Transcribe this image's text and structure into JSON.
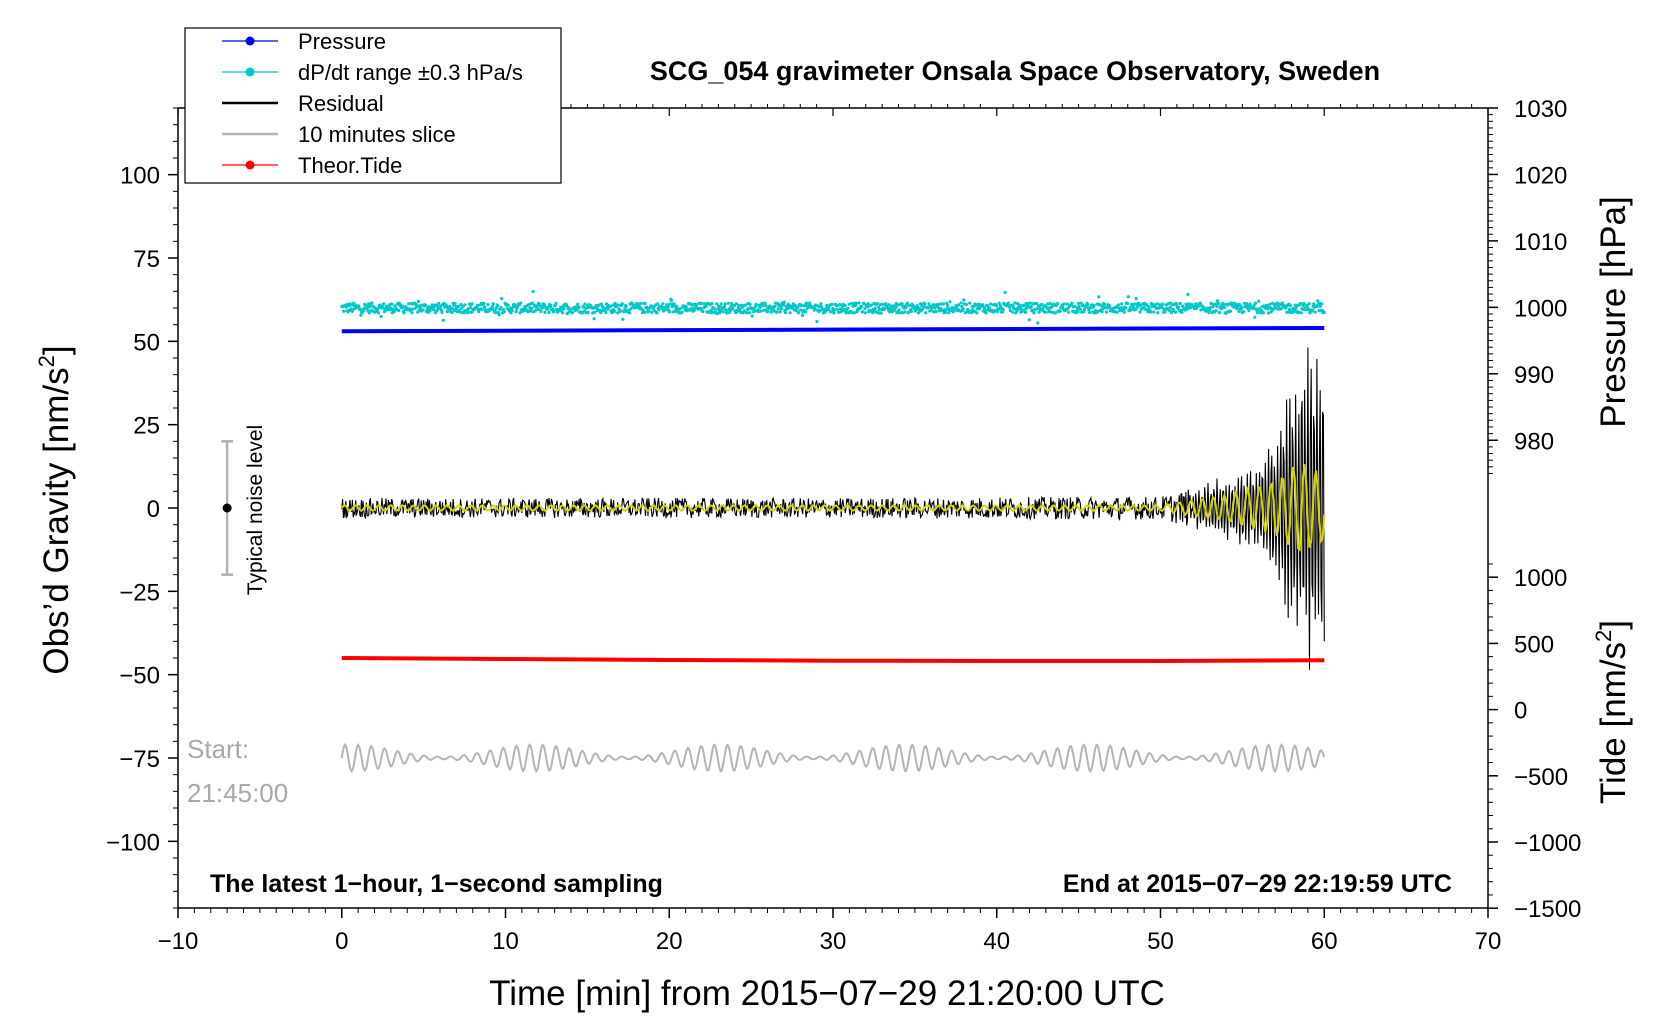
{
  "chart_data": {
    "type": "line",
    "title": "SCG_054 gravimeter Onsala Space Observatory, Sweden",
    "xlabel": "Time [min] from 2015−07−29 21:20:00 UTC",
    "ylabel": "Obs’d Gravity [nm/s",
    "ylabel_sup": "2",
    "ylabel_close": "]",
    "y2label": "Pressure [hPa]",
    "y3label": "Tide [nm/s",
    "y3label_sup": "2",
    "y3label_close": "]",
    "xlim": [
      -10,
      70
    ],
    "ylim": [
      -120,
      120
    ],
    "x_ticks": [
      -10,
      0,
      10,
      20,
      30,
      40,
      50,
      60,
      70
    ],
    "x_tick_labels": [
      "−10",
      "0",
      "10",
      "20",
      "30",
      "40",
      "50",
      "60",
      "70"
    ],
    "y_ticks": [
      100,
      75,
      50,
      25,
      0,
      -25,
      -50,
      -75,
      -100
    ],
    "y_tick_labels": [
      "100",
      "75",
      "50",
      "25",
      "0",
      "−25",
      "−50",
      "−75",
      "−100"
    ],
    "pressure_ticks": [
      1030,
      1020,
      1010,
      1000,
      990,
      980
    ],
    "pressure_tick_labels": [
      "1030",
      "1020",
      "1010",
      "1000",
      "990",
      "980"
    ],
    "pressure_range_shown": [
      975,
      1030
    ],
    "tide_ticks": [
      1000,
      500,
      0,
      -500,
      -1000,
      -1500
    ],
    "tide_tick_labels": [
      "1000",
      "500",
      "0",
      "−500",
      "−1000",
      "−1500"
    ],
    "tide_range_shown": [
      -1500,
      1100
    ],
    "legend": {
      "placement": "top-left",
      "entries": [
        {
          "label": "Pressure",
          "color": "#0000ff",
          "marker": "dot"
        },
        {
          "label": "dP/dt range ±0.3 hPa/s",
          "color": "#00c8c8",
          "marker": "dot"
        },
        {
          "label": "Residual",
          "color": "#000000",
          "marker": "line"
        },
        {
          "label": "10 minutes slice",
          "color": "#b4b4b4",
          "marker": "line"
        },
        {
          "label": "Theor.Tide",
          "color": "#ff0000",
          "marker": "dot"
        }
      ]
    },
    "series": [
      {
        "name": "Pressure",
        "color": "#0000ff",
        "x": [
          0,
          60
        ],
        "y": [
          996.4,
          996.9
        ],
        "axis": "pressure"
      },
      {
        "name": "dP/dt range ±0.3 hPa/s",
        "color": "#00c8c8",
        "x_range": [
          0,
          60
        ],
        "y_center": 60,
        "y_spread": 1.5
      },
      {
        "name": "Residual",
        "color": "#000000",
        "x_range": [
          0,
          60
        ],
        "y_center": 0,
        "envelope": [
          [
            0,
            3
          ],
          [
            30,
            3
          ],
          [
            50,
            3.5
          ],
          [
            52,
            6
          ],
          [
            54,
            10
          ],
          [
            56,
            14
          ],
          [
            57,
            22
          ],
          [
            58,
            40
          ],
          [
            59,
            55
          ],
          [
            60,
            50
          ]
        ]
      },
      {
        "name": "Residual (smoothed)",
        "color": "#d4d400",
        "x_range": [
          0,
          60
        ],
        "y_center": 0,
        "envelope": [
          [
            0,
            0.8
          ],
          [
            50,
            0.8
          ],
          [
            54,
            4
          ],
          [
            57,
            8
          ],
          [
            58.5,
            14
          ],
          [
            60,
            10
          ]
        ]
      },
      {
        "name": "10 minutes slice",
        "color": "#b4b4b4",
        "x_range": [
          0,
          60
        ],
        "y_center": -75,
        "y_amplitude": 4
      },
      {
        "name": "Theor.Tide",
        "color": "#ff0000",
        "x": [
          0,
          10,
          20,
          30,
          40,
          50,
          60
        ],
        "y": [
          -45,
          -45.3,
          -45.6,
          -45.8,
          -45.9,
          -45.9,
          -45.7
        ]
      }
    ],
    "noise_level": {
      "label": "Typical noise level",
      "x": -7,
      "center": 0,
      "range": [
        -20,
        20
      ]
    },
    "annotations": {
      "start_label": "Start:",
      "start_time": "21:45:00",
      "bottom_left": "The latest 1−hour, 1−second sampling",
      "bottom_right": "End at 2015−07−29 22:19:59 UTC"
    },
    "grid": false
  }
}
